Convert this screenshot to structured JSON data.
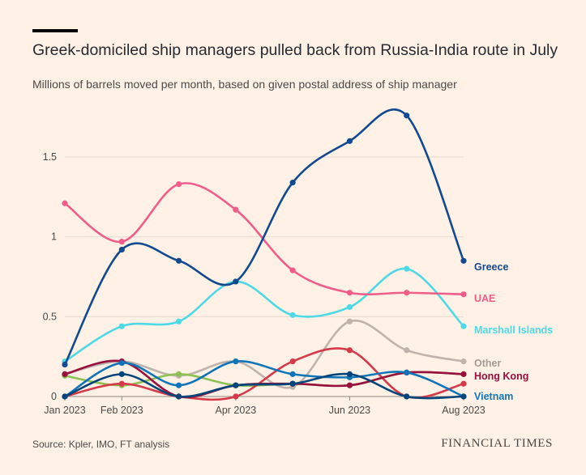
{
  "header": {
    "title": "Greek-domiciled ship managers pulled back from Russia-India route in July",
    "subtitle": "Millions of barrels moved per month, based on given postal address of ship manager"
  },
  "footer": {
    "source": "Source: Kpler, IMO, FT analysis",
    "brand": "FINANCIAL TIMES"
  },
  "chart_data": {
    "type": "line",
    "x": [
      "2023-01",
      "2023-02",
      "2023-03",
      "2023-04",
      "2023-05",
      "2023-06",
      "2023-07",
      "2023-08"
    ],
    "x_tick_labels": [
      {
        "x": "2023-01",
        "label": "Jan 2023"
      },
      {
        "x": "2023-02",
        "label": "Feb 2023"
      },
      {
        "x": "2023-04",
        "label": "Apr 2023"
      },
      {
        "x": "2023-06",
        "label": "Jun 2023"
      },
      {
        "x": "2023-08",
        "label": "Aug 2023"
      }
    ],
    "y_ticks": [
      {
        "value": 0,
        "label": "0"
      },
      {
        "value": 0.5,
        "label": "0.5"
      },
      {
        "value": 1,
        "label": "1"
      },
      {
        "value": 1.5,
        "label": "1.5"
      }
    ],
    "ylim": [
      0,
      1.85
    ],
    "grid": true,
    "legend": "right-end labels",
    "series": [
      {
        "name": "Other",
        "color": "#BFB3AB",
        "values": [
          0.14,
          0.22,
          0.13,
          0.22,
          0.06,
          0.47,
          0.29,
          0.22
        ]
      },
      {
        "name": "",
        "color": "#8CC152",
        "values": [
          0.13,
          0.07,
          0.14,
          0.07,
          0.08,
          0.07,
          0.15,
          0.14
        ]
      },
      {
        "name": "",
        "color": "#D63A49",
        "values": [
          0.0,
          0.08,
          0.0,
          0.0,
          0.22,
          0.29,
          0.0,
          0.08
        ]
      },
      {
        "name": "Hong Kong",
        "color": "#990F3D",
        "values": [
          0.14,
          0.22,
          0.0,
          0.07,
          0.08,
          0.07,
          0.15,
          0.14
        ]
      },
      {
        "name": "Vietnam",
        "color": "#0F74B8",
        "values": [
          0.0,
          0.21,
          0.07,
          0.22,
          0.14,
          0.12,
          0.15,
          0.0
        ]
      },
      {
        "name": "Marshall Islands",
        "color": "#4ED9E6",
        "values": [
          0.22,
          0.44,
          0.47,
          0.72,
          0.51,
          0.56,
          0.8,
          0.44
        ]
      },
      {
        "name": "UAE",
        "color": "#F05D89",
        "values": [
          1.21,
          0.97,
          1.33,
          1.17,
          0.79,
          0.65,
          0.65,
          0.64
        ]
      },
      {
        "name": "Greece",
        "color": "#124A8F",
        "values": [
          0.2,
          0.92,
          0.85,
          0.72,
          1.34,
          1.6,
          1.76,
          0.85
        ]
      },
      {
        "name": "",
        "color": "#00457A",
        "values": [
          0.0,
          0.14,
          0.0,
          0.07,
          0.08,
          0.14,
          0.0,
          0.0
        ]
      }
    ]
  }
}
